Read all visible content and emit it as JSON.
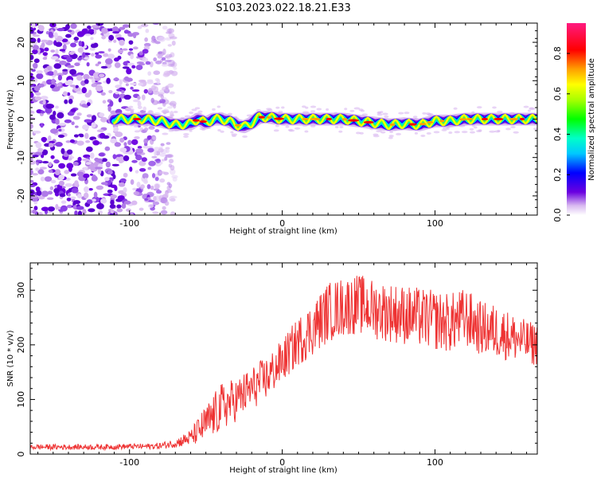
{
  "title": "S103.2023.022.18.21.E33",
  "colors": {
    "snr_line": "#ee3333",
    "background": "#ffffff"
  },
  "chart_data": [
    {
      "type": "heatmap",
      "title": "S103.2023.022.18.21.E33",
      "xlabel": "Height of straight line (km)",
      "ylabel": "Frequency (Hz)",
      "xlim": [
        -165,
        167
      ],
      "ylim": [
        -25,
        25
      ],
      "xticks": [
        -100,
        0,
        100
      ],
      "yticks": [
        -20,
        -10,
        0,
        10,
        20
      ],
      "colorbar": {
        "label": "Normalized spectral amplitude",
        "range": [
          0,
          0.95
        ],
        "ticks": [
          "0.0",
          "0.2",
          "0.4",
          "0.6",
          "0.8"
        ]
      },
      "features": [
        "diffuse scatter of low-amplitude noise for heights below about -80 km",
        "bright narrow band near 0 Hz from about -110 km to 167 km",
        "band dips to about -2 Hz near -25 km"
      ],
      "band": {
        "x": [
          -110,
          -100,
          -90,
          -80,
          -70,
          -60,
          -55,
          -50,
          -45,
          -40,
          -35,
          -30,
          -25,
          -20,
          -15,
          -10,
          0,
          10,
          20,
          30,
          40,
          50,
          60,
          70,
          80,
          90,
          100,
          110,
          120,
          130,
          140,
          150,
          160,
          167
        ],
        "freq_hz": [
          0,
          0,
          0,
          -0.5,
          -1.5,
          -1.2,
          0,
          -1,
          0,
          0,
          -0.5,
          -1.5,
          -2,
          -1,
          0.5,
          0.5,
          0,
          0,
          0,
          0,
          0,
          -0.5,
          -1,
          -1.5,
          -1.2,
          -1.5,
          -0.5,
          -0.5,
          0,
          0,
          0,
          0,
          0,
          0
        ]
      }
    },
    {
      "type": "line",
      "xlabel": "Height of straight line (km)",
      "ylabel": "SNR (10 * v/v)",
      "xlim": [
        -165,
        167
      ],
      "ylim": [
        0,
        350
      ],
      "xticks": [
        -100,
        0,
        100
      ],
      "yticks": [
        0,
        100,
        200,
        300
      ],
      "series": [
        {
          "x": [
            -165,
            -140,
            -120,
            -100,
            -90,
            -80,
            -70,
            -60,
            -50,
            -40,
            -30,
            -20,
            -10,
            0,
            10,
            20,
            30,
            40,
            50,
            60,
            70,
            80,
            90,
            100,
            110,
            120,
            130,
            140,
            150,
            160,
            167
          ],
          "values": [
            13,
            13,
            13,
            14,
            14,
            15,
            20,
            30,
            55,
            85,
            100,
            120,
            140,
            170,
            205,
            230,
            260,
            270,
            275,
            265,
            260,
            255,
            250,
            245,
            240,
            250,
            230,
            225,
            215,
            205,
            200
          ],
          "noise_amplitude": [
            5,
            5,
            5,
            5,
            5,
            6,
            8,
            15,
            35,
            45,
            40,
            40,
            40,
            40,
            45,
            50,
            55,
            55,
            55,
            55,
            55,
            55,
            55,
            55,
            55,
            55,
            50,
            50,
            45,
            40,
            40
          ]
        }
      ]
    }
  ]
}
